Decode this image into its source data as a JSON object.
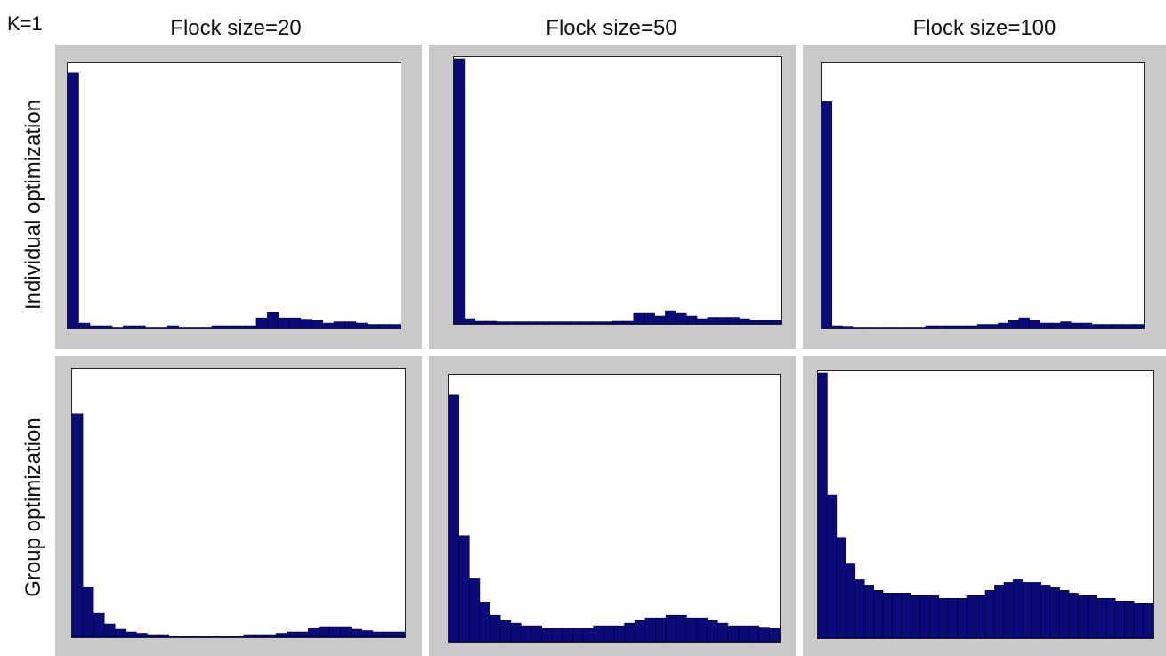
{
  "figure": {
    "k_label": "K=1",
    "column_titles": [
      "Flock size=20",
      "Flock size=50",
      "Flock size=100"
    ],
    "row_titles": [
      "Individual optimization",
      "Group optimization"
    ],
    "bar_color": "#0a0a78",
    "panel_color": "#c9c9c9"
  },
  "chart_data": [
    {
      "type": "bar",
      "title": "Flock size=20",
      "row": "Individual optimization",
      "ylim": [
        0,
        1
      ],
      "values": [
        0.97,
        0.02,
        0.01,
        0.01,
        0.005,
        0.01,
        0.01,
        0.005,
        0.005,
        0.01,
        0.005,
        0.005,
        0.005,
        0.01,
        0.01,
        0.01,
        0.01,
        0.04,
        0.06,
        0.04,
        0.04,
        0.035,
        0.03,
        0.02,
        0.025,
        0.025,
        0.02,
        0.015,
        0.015,
        0.015
      ]
    },
    {
      "type": "bar",
      "title": "Flock size=50",
      "row": "Individual optimization",
      "ylim": [
        0,
        1
      ],
      "values": [
        1.0,
        0.02,
        0.01,
        0.01,
        0.008,
        0.008,
        0.008,
        0.008,
        0.008,
        0.008,
        0.008,
        0.008,
        0.008,
        0.008,
        0.008,
        0.01,
        0.01,
        0.04,
        0.04,
        0.03,
        0.05,
        0.04,
        0.03,
        0.02,
        0.025,
        0.025,
        0.025,
        0.02,
        0.015,
        0.015,
        0.015
      ]
    },
    {
      "type": "bar",
      "title": "Flock size=100",
      "row": "Individual optimization",
      "ylim": [
        0,
        1
      ],
      "values": [
        0.86,
        0.01,
        0.008,
        0.005,
        0.005,
        0.005,
        0.005,
        0.005,
        0.005,
        0.005,
        0.01,
        0.01,
        0.01,
        0.01,
        0.01,
        0.015,
        0.015,
        0.02,
        0.03,
        0.04,
        0.03,
        0.02,
        0.02,
        0.025,
        0.02,
        0.02,
        0.015,
        0.015,
        0.015,
        0.015,
        0.015
      ]
    },
    {
      "type": "bar",
      "title": "Flock size=20",
      "row": "Group optimization",
      "ylim": [
        0,
        1
      ],
      "values": [
        0.84,
        0.19,
        0.09,
        0.05,
        0.03,
        0.02,
        0.015,
        0.01,
        0.01,
        0.005,
        0.005,
        0.005,
        0.005,
        0.005,
        0.005,
        0.005,
        0.01,
        0.01,
        0.01,
        0.015,
        0.02,
        0.02,
        0.035,
        0.04,
        0.04,
        0.04,
        0.03,
        0.025,
        0.02,
        0.02,
        0.02
      ]
    },
    {
      "type": "bar",
      "title": "Flock size=50",
      "row": "Group optimization",
      "ylim": [
        0,
        1
      ],
      "values": [
        0.93,
        0.4,
        0.24,
        0.15,
        0.1,
        0.08,
        0.07,
        0.06,
        0.06,
        0.05,
        0.05,
        0.05,
        0.05,
        0.05,
        0.06,
        0.06,
        0.06,
        0.07,
        0.08,
        0.09,
        0.09,
        0.1,
        0.1,
        0.09,
        0.09,
        0.08,
        0.07,
        0.06,
        0.06,
        0.06,
        0.055,
        0.05
      ]
    },
    {
      "type": "bar",
      "title": "Flock size=100",
      "row": "Group optimization",
      "ylim": [
        0,
        1
      ],
      "values": [
        1.0,
        0.54,
        0.38,
        0.28,
        0.22,
        0.2,
        0.18,
        0.17,
        0.17,
        0.17,
        0.16,
        0.16,
        0.16,
        0.15,
        0.15,
        0.15,
        0.16,
        0.16,
        0.18,
        0.2,
        0.21,
        0.22,
        0.21,
        0.21,
        0.2,
        0.19,
        0.18,
        0.17,
        0.16,
        0.16,
        0.15,
        0.15,
        0.14,
        0.14,
        0.13,
        0.13
      ]
    }
  ]
}
